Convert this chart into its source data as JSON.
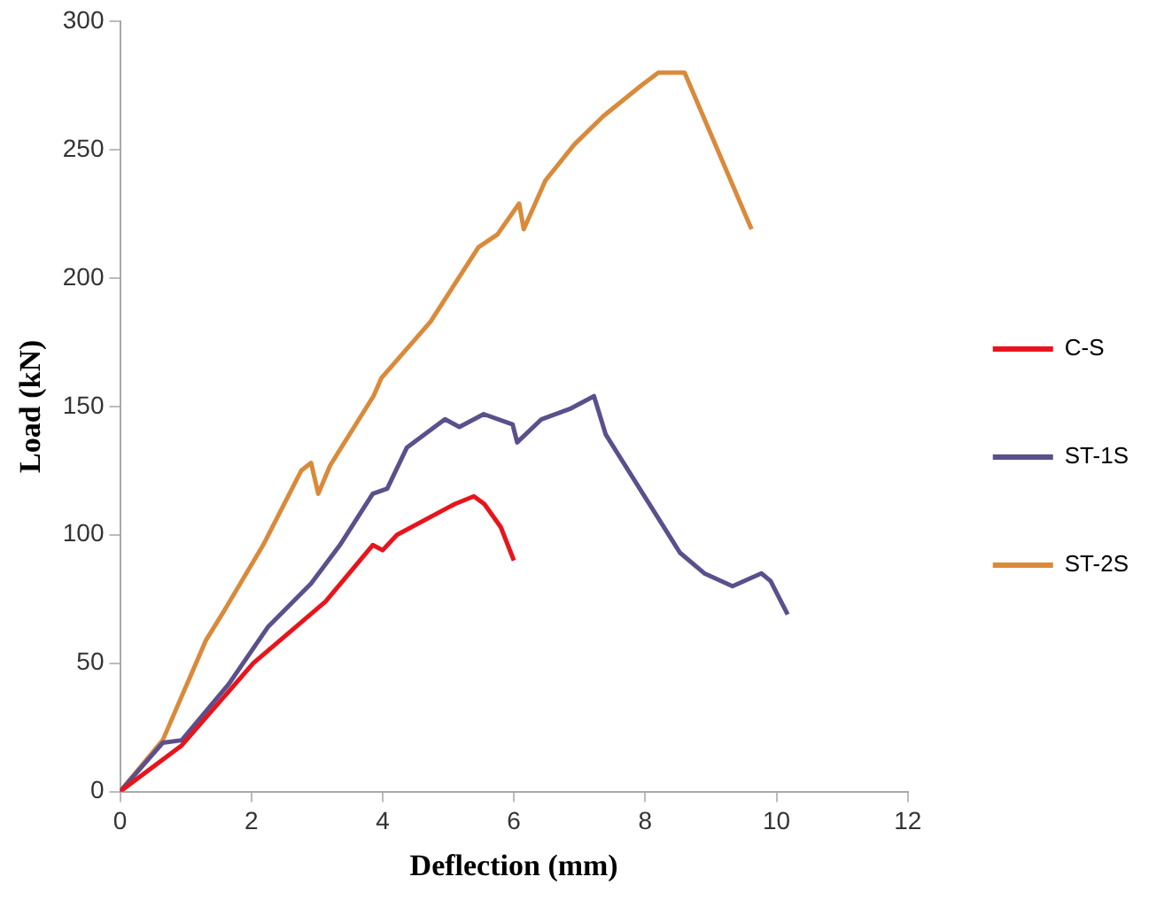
{
  "chart_data": {
    "type": "line",
    "xlabel": "Deflection (mm)",
    "ylabel": "Load (kN)",
    "xlim": [
      0,
      12
    ],
    "xticks": [
      0,
      2,
      4,
      6,
      8,
      10,
      12
    ],
    "ylim": [
      0,
      300
    ],
    "yticks": [
      0,
      50,
      100,
      150,
      200,
      250,
      300
    ],
    "grid": false,
    "legend": "right",
    "marker": "none",
    "line_style": "solid",
    "series": [
      {
        "name": "C-S",
        "color": "#e8141c",
        "x": [
          0,
          0.94,
          2.03,
          3.13,
          3.85,
          4.0,
          4.22,
          5.1,
          5.39,
          5.55,
          5.8,
          6.0
        ],
        "values": [
          0,
          18,
          50,
          74,
          96,
          94,
          100,
          112,
          115,
          112,
          103,
          90
        ]
      },
      {
        "name": "ST-1S",
        "color": "#5b4f8c",
        "x": [
          0,
          0.65,
          0.94,
          1.66,
          2.25,
          2.91,
          3.35,
          3.85,
          4.07,
          4.37,
          4.95,
          5.17,
          5.54,
          5.98,
          6.05,
          6.42,
          6.85,
          7.22,
          7.4,
          8.53,
          8.9,
          9.33,
          9.77,
          9.91,
          10.17
        ],
        "values": [
          0,
          19,
          20,
          42,
          64,
          81,
          96,
          116,
          118,
          134,
          145,
          142,
          147,
          143,
          136,
          145,
          149,
          154,
          139,
          93,
          85,
          80,
          85,
          82,
          69
        ]
      },
      {
        "name": "ST-2S",
        "color": "#d98a3a",
        "x": [
          0,
          0.65,
          1.31,
          1.6,
          2.18,
          2.76,
          2.91,
          3.02,
          3.2,
          3.86,
          3.98,
          4.73,
          5.46,
          5.75,
          6.08,
          6.15,
          6.48,
          6.92,
          7.36,
          7.94,
          8.2,
          8.6,
          9.62
        ],
        "values": [
          0,
          20,
          59,
          71,
          96,
          125,
          128,
          116,
          127,
          154,
          161,
          183,
          212,
          217,
          229,
          219,
          238,
          252,
          263,
          275,
          280,
          280,
          219
        ]
      }
    ]
  }
}
